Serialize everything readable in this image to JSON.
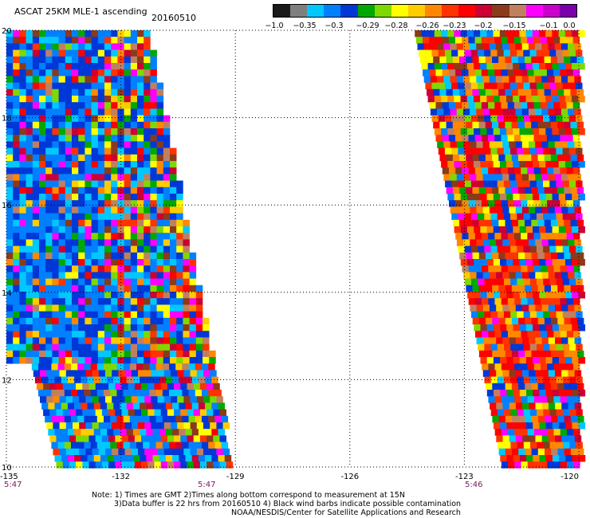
{
  "header": {
    "title": "ASCAT 25KM MLE-1 ascending",
    "date": "20160510"
  },
  "legend": {
    "colors": [
      "#1a1a1a",
      "#7f7f7f",
      "#00c8ff",
      "#0080ff",
      "#0038d8",
      "#00a800",
      "#7fd800",
      "#ffff00",
      "#ffcc00",
      "#ff8800",
      "#ff3300",
      "#ff0000",
      "#cc0033",
      "#8b3a1a",
      "#c08060",
      "#ff00ff",
      "#cc00cc",
      "#7a00aa"
    ],
    "labels": [
      "−1.0",
      "−0.35",
      "−0.3",
      "−0.29",
      "−0.28",
      "−0.26",
      "−0.23",
      "−0.2",
      "−0.15",
      "−0.1",
      "0.0"
    ]
  },
  "map": {
    "lat_range": [
      10,
      20
    ],
    "lon_range": [
      -135,
      -120
    ],
    "lat_ticks": [
      "20",
      "18",
      "16",
      "14",
      "12",
      "10"
    ],
    "lon_ticks": [
      "-135",
      "-132",
      "-129",
      "-126",
      "-123",
      "-120"
    ],
    "time_labels": [
      "5:47",
      "5:47",
      "5:46"
    ]
  },
  "chart_data": {
    "type": "heatmap",
    "title": "ASCAT 25KM MLE-1 ascending",
    "subtitle": "20160510",
    "xlim": [
      -135,
      -120
    ],
    "ylim": [
      10,
      20
    ],
    "x_ticks": [
      -135,
      -132,
      -129,
      -126,
      -123,
      -120
    ],
    "y_ticks": [
      10,
      12,
      14,
      16,
      18,
      20
    ],
    "color_scale_values": [
      -1.0,
      -0.35,
      -0.3,
      -0.29,
      -0.28,
      -0.26,
      -0.23,
      -0.2,
      -0.15,
      -0.1,
      0.0
    ],
    "swaths": [
      {
        "lon_west": -135,
        "lon_east_at_20N": -131.3,
        "lon_east_at_10N": -129.1
      },
      {
        "lon_west_at_20N": -124.3,
        "lon_west_at_10N": -122.0,
        "lon_east": -120
      }
    ]
  },
  "notes": {
    "line1": "Note: 1) Times are GMT 2)Times along bottom correspond to measurement at 15N",
    "line2": "3)Data buffer is 22 hrs from 20160510 4) Black wind barbs indicate possible contamination",
    "line3": "NOAA/NESDIS/Center for Satellite Applications and Research"
  }
}
